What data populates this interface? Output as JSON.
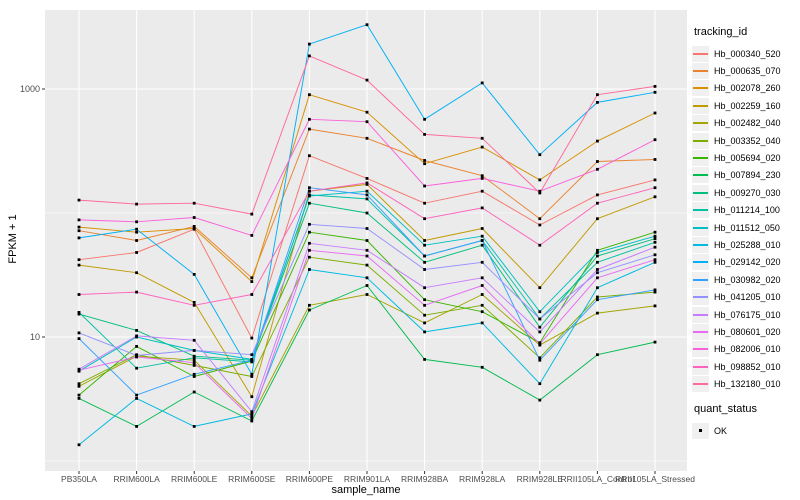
{
  "figure": {
    "kind": "ggplot-line-chart"
  },
  "axes": {
    "y_title": "FPKM + 1",
    "x_title": "sample_name",
    "y_tick_labels": [
      "1000",
      "10"
    ]
  },
  "legend": {
    "color_title": "tracking_id",
    "shape_title": "quant_status",
    "shape_items": [
      {
        "label": "OK"
      }
    ]
  },
  "theme": {
    "panel_bg": "#EBEBEB",
    "grid_major": "#FFFFFF",
    "grid_minor": "#F5F5F5",
    "tick_mark": "#333333",
    "tick_text": "#4D4D4D",
    "point_color": "#000000",
    "key_bg": "#F0F0F0"
  },
  "chart_data": {
    "type": "line",
    "x_type": "categorical",
    "yscale": "log10",
    "title": "",
    "xlabel": "sample_name",
    "ylabel": "FPKM + 1",
    "ylim": [
      0.9,
      4600
    ],
    "y_breaks": [
      10,
      1000
    ],
    "y_minor_breaks": [
      1,
      100
    ],
    "grid": true,
    "legend_position": "right",
    "point_shape": "filled-square-black",
    "categories": [
      "PB350LA",
      "RRIM600LA",
      "RRIM600LE",
      "RRIM600SE",
      "RRIM600PE",
      "RRIM901LA",
      "RRIM928BA",
      "RRIM928LA",
      "RRIM928LE",
      "RRII105LA_Control",
      "RRII105LA_Stressed"
    ],
    "series": [
      {
        "name": "Hb_000340_520",
        "color": "#F8766D",
        "values": [
          42,
          48,
          74,
          9.8,
          290,
          190,
          120,
          150,
          80,
          140,
          185
        ]
      },
      {
        "name": "Hb_000635_070",
        "color": "#EA8331",
        "values": [
          72,
          60,
          78,
          30,
          475,
          400,
          265,
          200,
          90,
          260,
          270
        ]
      },
      {
        "name": "Hb_002078_260",
        "color": "#D89000",
        "values": [
          77,
          70,
          75,
          28,
          900,
          650,
          250,
          340,
          185,
          380,
          640
        ]
      },
      {
        "name": "Hb_002259_160",
        "color": "#C09B00",
        "values": [
          38,
          33,
          19,
          3.3,
          150,
          170,
          60,
          75,
          25,
          90,
          135
        ]
      },
      {
        "name": "Hb_002482_040",
        "color": "#A3A500",
        "values": [
          4.0,
          7.0,
          6.5,
          2.3,
          18,
          22,
          13,
          22,
          8.6,
          15.6,
          17.8
        ]
      },
      {
        "name": "Hb_003352_040",
        "color": "#7CAE00",
        "values": [
          4.2,
          7.2,
          5.9,
          4.8,
          44,
          38,
          15,
          18,
          6.8,
          21,
          23
        ]
      },
      {
        "name": "Hb_005694_020",
        "color": "#39B600",
        "values": [
          3.4,
          8.4,
          4.8,
          6.4,
          70,
          60,
          20,
          16,
          9.0,
          50,
          70
        ]
      },
      {
        "name": "Hb_007894_230",
        "color": "#00BB4E",
        "values": [
          3.2,
          1.9,
          3.6,
          2.1,
          16.5,
          26,
          6.6,
          5.7,
          3.1,
          7.2,
          9.1
        ]
      },
      {
        "name": "Hb_009270_030",
        "color": "#00BF7D",
        "values": [
          15.3,
          11.3,
          7.0,
          6.5,
          120,
          100,
          40,
          55,
          12,
          45,
          62
        ]
      },
      {
        "name": "Hb_011214_100",
        "color": "#00C1A3",
        "values": [
          15.8,
          5.6,
          6.8,
          6.3,
          140,
          130,
          45,
          60,
          14,
          40,
          58
        ]
      },
      {
        "name": "Hb_011512_050",
        "color": "#00BFC4",
        "values": [
          5.3,
          10.0,
          7.8,
          6.6,
          137,
          150,
          55,
          65,
          16,
          48,
          65
        ]
      },
      {
        "name": "Hb_025288_010",
        "color": "#00BAE0",
        "values": [
          1.35,
          3.2,
          1.9,
          2.4,
          35,
          30,
          11,
          13,
          4.2,
          25,
          40
        ]
      },
      {
        "name": "Hb_029142_020",
        "color": "#00B0F6",
        "values": [
          63,
          74,
          32,
          5.0,
          2300,
          3300,
          570,
          1120,
          295,
          780,
          940
        ]
      },
      {
        "name": "Hb_030982_020",
        "color": "#35A2FF",
        "values": [
          9.7,
          3.4,
          5.0,
          6.5,
          160,
          140,
          45,
          60,
          6.5,
          20,
          24
        ]
      },
      {
        "name": "Hb_041205_010",
        "color": "#9590FF",
        "values": [
          10.8,
          7.1,
          7.8,
          7.2,
          81,
          75,
          35,
          40,
          14,
          33,
          46
        ]
      },
      {
        "name": "Hb_076175_010",
        "color": "#C77CFF",
        "values": [
          5.5,
          10.2,
          9.4,
          2.5,
          57,
          50,
          25,
          30,
          11,
          35,
          53
        ]
      },
      {
        "name": "Hb_080601_020",
        "color": "#E76BF3",
        "values": [
          5.4,
          6.9,
          6.2,
          2.2,
          50,
          45,
          18,
          26,
          8.8,
          30,
          42
        ]
      },
      {
        "name": "Hb_082006_010",
        "color": "#FA62DB",
        "values": [
          88,
          85,
          92,
          66,
          570,
          545,
          165,
          190,
          150,
          225,
          390
        ]
      },
      {
        "name": "Hb_098852_010",
        "color": "#FF62BC",
        "values": [
          22,
          23,
          18,
          22,
          150,
          175,
          90,
          110,
          55,
          120,
          160
        ]
      },
      {
        "name": "Hb_132180_010",
        "color": "#FF6A98",
        "values": [
          127,
          118,
          120,
          98,
          1850,
          1180,
          430,
          400,
          145,
          900,
          1050
        ]
      }
    ]
  }
}
